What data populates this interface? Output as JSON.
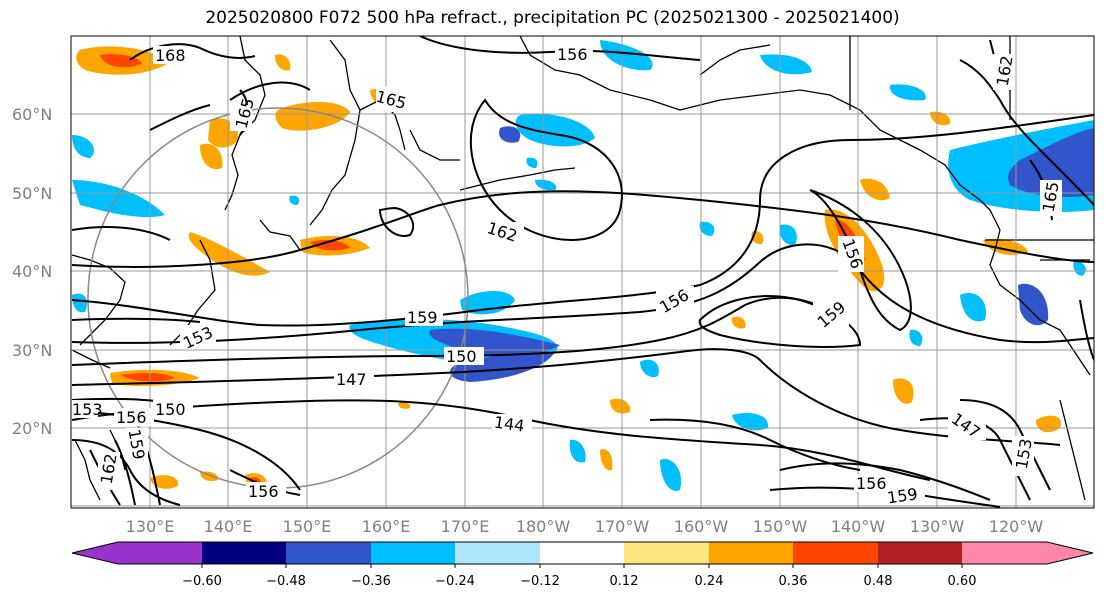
{
  "title": "2025020800 F072 500 hPa refract., precipitation PC (2025021300 - 2025021400)",
  "axes": {
    "lat_labels": [
      "60°N",
      "50°N",
      "40°N",
      "30°N",
      "20°N"
    ],
    "lon_labels": [
      "130°E",
      "140°E",
      "150°E",
      "160°E",
      "170°E",
      "180°W",
      "170°W",
      "160°W",
      "150°W",
      "140°W",
      "130°W",
      "120°W"
    ]
  },
  "contour_labels": [
    "168",
    "165",
    "162",
    "156",
    "153",
    "159",
    "150",
    "147",
    "144",
    "159",
    "156",
    "147",
    "153",
    "156",
    "159",
    "162",
    "165",
    "156",
    "153",
    "150",
    "156",
    "162",
    "159",
    "165",
    "156"
  ],
  "colorbar": {
    "colors": [
      "#9933cc",
      "#000080",
      "#3355cc",
      "#00bfff",
      "#aee6ff",
      "#ffffff",
      "#ffe680",
      "#ffa500",
      "#ff4500",
      "#b22222",
      "#ff88aa"
    ],
    "tick_labels": [
      "−0.60",
      "−0.48",
      "−0.36",
      "−0.24",
      "−0.12",
      "0.12",
      "0.24",
      "0.36",
      "0.48",
      "0.60"
    ]
  }
}
